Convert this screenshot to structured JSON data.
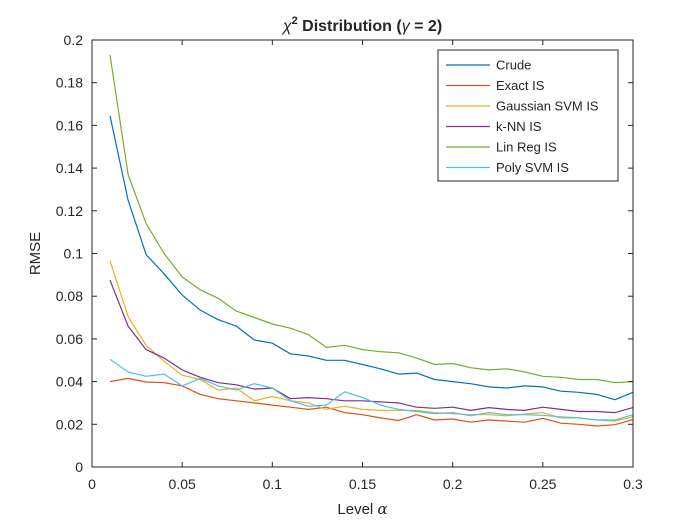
{
  "chart_data": {
    "type": "line",
    "title": "χ² Distribution (γ = 2)",
    "title_parts": {
      "chi": "χ",
      "superscript": "2",
      "middle": " Distribution (",
      "gamma": "γ",
      "end": " = 2)"
    },
    "xlabel": "Level α",
    "xlabel_parts": {
      "text": "Level ",
      "symbol": "α"
    },
    "ylabel": "RMSE",
    "xlim": [
      0,
      0.3
    ],
    "ylim": [
      0,
      0.2
    ],
    "xticks": [
      0,
      0.05,
      0.1,
      0.15,
      0.2,
      0.25,
      0.3
    ],
    "xtick_labels": [
      "0",
      "0.05",
      "0.1",
      "0.15",
      "0.2",
      "0.25",
      "0.3"
    ],
    "yticks": [
      0,
      0.02,
      0.04,
      0.06,
      0.08,
      0.1,
      0.12,
      0.14,
      0.16,
      0.18,
      0.2
    ],
    "ytick_labels": [
      "0",
      "0.02",
      "0.04",
      "0.06",
      "0.08",
      "0.1",
      "0.12",
      "0.14",
      "0.16",
      "0.18",
      "0.2"
    ],
    "grid": false,
    "legend_position": "top-right",
    "x": [
      0.01,
      0.02,
      0.03,
      0.04,
      0.05,
      0.06,
      0.07,
      0.08,
      0.09,
      0.1,
      0.11,
      0.12,
      0.13,
      0.14,
      0.15,
      0.16,
      0.17,
      0.18,
      0.19,
      0.2,
      0.21,
      0.22,
      0.23,
      0.24,
      0.25,
      0.26,
      0.27,
      0.28,
      0.29,
      0.3
    ],
    "series": [
      {
        "name": "Crude",
        "color": "#0072BD",
        "values": [
          0.1645,
          0.125,
          0.0995,
          0.0905,
          0.0805,
          0.0735,
          0.069,
          0.066,
          0.0595,
          0.058,
          0.053,
          0.052,
          0.05,
          0.05,
          0.048,
          0.046,
          0.0435,
          0.044,
          0.041,
          0.04,
          0.039,
          0.0375,
          0.037,
          0.038,
          0.0375,
          0.0355,
          0.035,
          0.034,
          0.0315,
          0.035
        ]
      },
      {
        "name": "Exact IS",
        "color": "#D95319",
        "values": [
          0.04,
          0.0415,
          0.0398,
          0.0395,
          0.038,
          0.034,
          0.032,
          0.031,
          0.03,
          0.029,
          0.028,
          0.027,
          0.028,
          0.0255,
          0.0245,
          0.023,
          0.0218,
          0.0245,
          0.022,
          0.0225,
          0.021,
          0.022,
          0.0215,
          0.021,
          0.0228,
          0.0205,
          0.02,
          0.0192,
          0.0198,
          0.0222
        ]
      },
      {
        "name": "Gaussian SVM IS",
        "color": "#EDB120",
        "values": [
          0.0965,
          0.0705,
          0.057,
          0.0495,
          0.043,
          0.041,
          0.036,
          0.037,
          0.031,
          0.033,
          0.031,
          0.03,
          0.027,
          0.0285,
          0.027,
          0.0265,
          0.0265,
          0.0265,
          0.0255,
          0.025,
          0.0245,
          0.0245,
          0.024,
          0.0248,
          0.0255,
          0.023,
          0.023,
          0.022,
          0.0215,
          0.0235
        ]
      },
      {
        "name": "k-NN IS",
        "color": "#7E2F8E",
        "values": [
          0.0875,
          0.066,
          0.055,
          0.051,
          0.0455,
          0.042,
          0.0395,
          0.0385,
          0.0365,
          0.037,
          0.032,
          0.0325,
          0.032,
          0.031,
          0.031,
          0.0305,
          0.03,
          0.028,
          0.0275,
          0.028,
          0.0265,
          0.0278,
          0.027,
          0.0265,
          0.028,
          0.027,
          0.026,
          0.026,
          0.0255,
          0.0278
        ]
      },
      {
        "name": "Lin Reg IS",
        "color": "#77AC30",
        "values": [
          0.193,
          0.137,
          0.114,
          0.1,
          0.089,
          0.083,
          0.079,
          0.073,
          0.07,
          0.067,
          0.065,
          0.062,
          0.056,
          0.057,
          0.055,
          0.054,
          0.0535,
          0.051,
          0.048,
          0.0485,
          0.0465,
          0.0455,
          0.046,
          0.0445,
          0.0425,
          0.042,
          0.041,
          0.041,
          0.0395,
          0.04
        ]
      },
      {
        "name": "Poly SVM IS",
        "color": "#4DBEEE",
        "values": [
          0.0505,
          0.0445,
          0.0425,
          0.0435,
          0.038,
          0.0415,
          0.038,
          0.036,
          0.039,
          0.037,
          0.031,
          0.0285,
          0.029,
          0.0352,
          0.0325,
          0.029,
          0.027,
          0.026,
          0.025,
          0.0255,
          0.024,
          0.0255,
          0.0245,
          0.0245,
          0.0242,
          0.0235,
          0.023,
          0.022,
          0.022,
          0.0245
        ]
      }
    ]
  }
}
